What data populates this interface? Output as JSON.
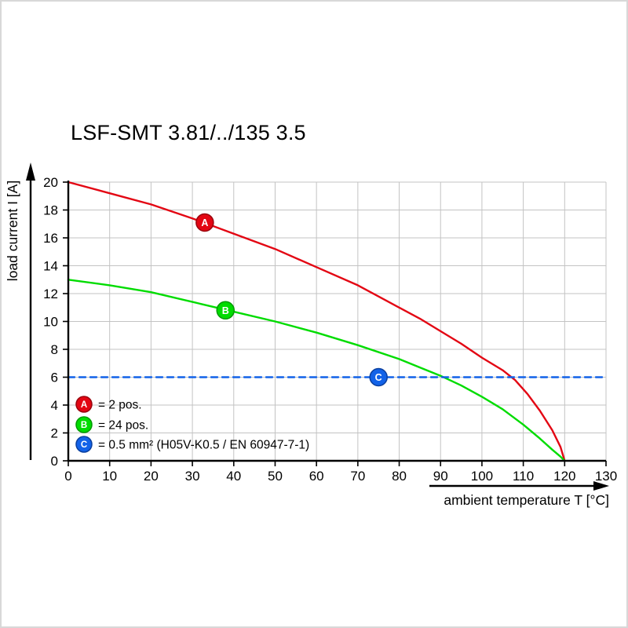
{
  "title": "LSF-SMT 3.81/../135 3.5",
  "chart_data": {
    "type": "line",
    "title": "LSF-SMT 3.81/../135 3.5",
    "xlabel": "ambient temperature T [°C]",
    "ylabel": "load current I [A]",
    "xlim": [
      0,
      130
    ],
    "ylim": [
      0,
      20
    ],
    "x_ticks": [
      0,
      10,
      20,
      30,
      40,
      50,
      60,
      70,
      80,
      90,
      100,
      110,
      120,
      130
    ],
    "y_ticks": [
      0,
      2,
      4,
      6,
      8,
      10,
      12,
      14,
      16,
      18,
      20
    ],
    "grid": true,
    "legend_position": "bottom-left-inside",
    "series": [
      {
        "name": "A",
        "label": "= 2 pos.",
        "color": "#e30613",
        "dark": "#99040d",
        "style": "solid",
        "marker_at": [
          33,
          17.1
        ],
        "points": [
          [
            0,
            20
          ],
          [
            10,
            19.2
          ],
          [
            20,
            18.4
          ],
          [
            30,
            17.4
          ],
          [
            40,
            16.3
          ],
          [
            50,
            15.2
          ],
          [
            60,
            13.9
          ],
          [
            70,
            12.6
          ],
          [
            80,
            11.0
          ],
          [
            85,
            10.2
          ],
          [
            90,
            9.3
          ],
          [
            95,
            8.4
          ],
          [
            100,
            7.4
          ],
          [
            105,
            6.5
          ],
          [
            108,
            5.8
          ],
          [
            111,
            4.8
          ],
          [
            114,
            3.6
          ],
          [
            117,
            2.2
          ],
          [
            119,
            1.0
          ],
          [
            120,
            0
          ]
        ]
      },
      {
        "name": "B",
        "label": "= 24 pos.",
        "color": "#00dc00",
        "dark": "#009a00",
        "style": "solid",
        "marker_at": [
          38,
          10.8
        ],
        "points": [
          [
            0,
            13
          ],
          [
            10,
            12.6
          ],
          [
            20,
            12.1
          ],
          [
            30,
            11.4
          ],
          [
            40,
            10.7
          ],
          [
            50,
            10.0
          ],
          [
            60,
            9.2
          ],
          [
            70,
            8.3
          ],
          [
            80,
            7.3
          ],
          [
            85,
            6.7
          ],
          [
            90,
            6.1
          ],
          [
            95,
            5.4
          ],
          [
            100,
            4.6
          ],
          [
            105,
            3.7
          ],
          [
            110,
            2.6
          ],
          [
            114,
            1.6
          ],
          [
            117,
            0.8
          ],
          [
            119,
            0.3
          ],
          [
            120,
            0
          ]
        ]
      },
      {
        "name": "C",
        "label": "= 0.5 mm² (H05V-K0.5 / EN 60947-7-1)",
        "color": "#1262e8",
        "dark": "#0a3f9e",
        "style": "dashed",
        "marker_at": [
          75,
          6
        ],
        "points": [
          [
            0,
            6
          ],
          [
            130,
            6
          ]
        ]
      }
    ]
  }
}
